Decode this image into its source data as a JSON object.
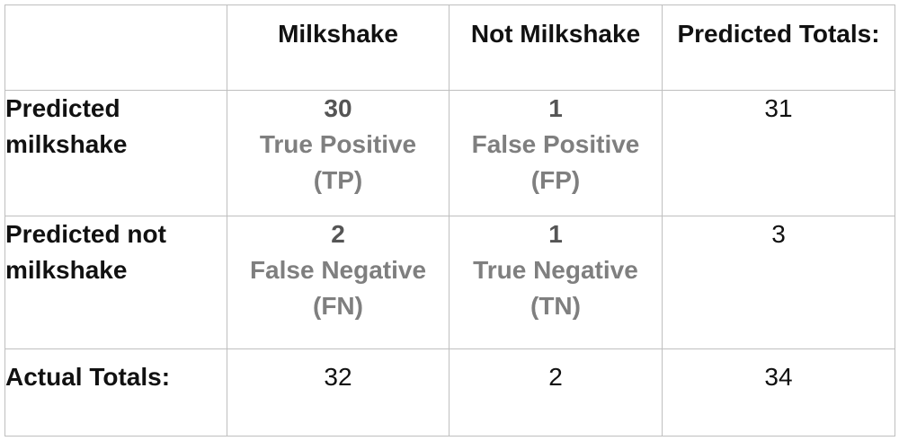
{
  "chart_data": {
    "type": "table",
    "columns": [
      "",
      "Milkshake",
      "Not Milkshake",
      "Predicted Totals:"
    ],
    "rows": [
      {
        "label": "Predicted milkshake",
        "cells": [
          {
            "value": "30",
            "label": "True Positive",
            "abbr": "(TP)"
          },
          {
            "value": "1",
            "label": "False Positive",
            "abbr": "(FP)"
          }
        ],
        "total": "31"
      },
      {
        "label": "Predicted not milkshake",
        "cells": [
          {
            "value": "2",
            "label": "False Negative",
            "abbr": "(FN)"
          },
          {
            "value": "1",
            "label": "True Negative",
            "abbr": "(TN)"
          }
        ],
        "total": "3"
      }
    ],
    "actual_totals": {
      "label": "Actual Totals:",
      "values": [
        "32",
        "2",
        "34"
      ]
    }
  },
  "colors": {
    "border": "#bfbfbf",
    "text": "#111111",
    "count": "#555555",
    "cell_label": "#7f7f7f"
  }
}
